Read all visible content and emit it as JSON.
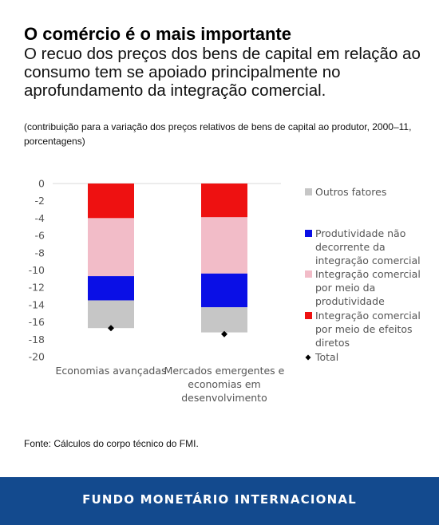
{
  "header": {
    "title": "O comércio é o mais importante",
    "subtitle": "O recuo dos preços dos bens de capital em relação ao consumo tem se apoiado principalmente no aprofundamento da integração comercial.",
    "note": "(contribuição para a variação dos preços relativos de bens de capital ao produtor, 2000–11, porcentagens)"
  },
  "chart_data": {
    "type": "bar",
    "stacked": true,
    "categories": [
      [
        "Economias avançadas"
      ],
      [
        "Mercados emergentes e",
        "economias em",
        "desenvolvimento"
      ]
    ],
    "ylim": [
      -20,
      0
    ],
    "yticks": [
      0,
      -2,
      -4,
      -6,
      -8,
      -10,
      -12,
      -14,
      -16,
      -18,
      -20
    ],
    "grid": false,
    "legend_position": "right",
    "series": [
      {
        "name": [
          "Integração comercial",
          "por meio de efeitos",
          "diretos"
        ],
        "color": "#ee1111",
        "values": [
          -4.0,
          -3.9
        ]
      },
      {
        "name": [
          "Integração comercial",
          "por meio da",
          "produtividade"
        ],
        "color": "#f2bcc8",
        "values": [
          -6.7,
          -6.5
        ]
      },
      {
        "name": [
          "Produtividade não",
          "decorrente da",
          "integração comercial"
        ],
        "color": "#0a0fe6",
        "values": [
          -2.8,
          -3.9
        ]
      },
      {
        "name": [
          "Outros fatores"
        ],
        "color": "#c6c6c6",
        "values": [
          -3.2,
          -2.9
        ]
      }
    ],
    "total": {
      "name": [
        "Total"
      ],
      "values": [
        -16.7,
        -17.4
      ]
    },
    "legend_order": [
      3,
      2,
      1,
      0,
      "total"
    ]
  },
  "footer": {
    "source": "Fonte: Cálculos do corpo técnico do FMI.",
    "org": "FUNDO MONETÁRIO INTERNACIONAL"
  }
}
